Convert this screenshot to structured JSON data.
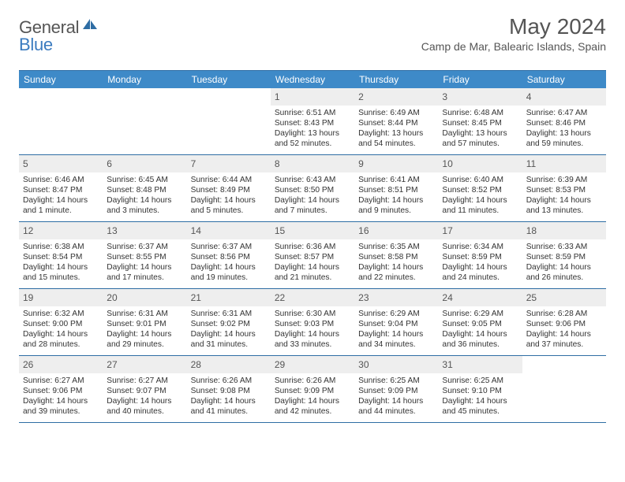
{
  "brand": {
    "part1": "General",
    "part2": "Blue"
  },
  "title": "May 2024",
  "location": "Camp de Mar, Balearic Islands, Spain",
  "colors": {
    "header_bg": "#3e8ac8",
    "rule": "#2e6da4",
    "daynum_bg": "#eeeeee",
    "text_muted": "#555555",
    "text_body": "#333333",
    "brand_blue": "#3b7bbf"
  },
  "day_headers": [
    "Sunday",
    "Monday",
    "Tuesday",
    "Wednesday",
    "Thursday",
    "Friday",
    "Saturday"
  ],
  "weeks": [
    [
      null,
      null,
      null,
      {
        "n": "1",
        "sunrise": "6:51 AM",
        "sunset": "8:43 PM",
        "daylight": "13 hours and 52 minutes."
      },
      {
        "n": "2",
        "sunrise": "6:49 AM",
        "sunset": "8:44 PM",
        "daylight": "13 hours and 54 minutes."
      },
      {
        "n": "3",
        "sunrise": "6:48 AM",
        "sunset": "8:45 PM",
        "daylight": "13 hours and 57 minutes."
      },
      {
        "n": "4",
        "sunrise": "6:47 AM",
        "sunset": "8:46 PM",
        "daylight": "13 hours and 59 minutes."
      }
    ],
    [
      {
        "n": "5",
        "sunrise": "6:46 AM",
        "sunset": "8:47 PM",
        "daylight": "14 hours and 1 minute."
      },
      {
        "n": "6",
        "sunrise": "6:45 AM",
        "sunset": "8:48 PM",
        "daylight": "14 hours and 3 minutes."
      },
      {
        "n": "7",
        "sunrise": "6:44 AM",
        "sunset": "8:49 PM",
        "daylight": "14 hours and 5 minutes."
      },
      {
        "n": "8",
        "sunrise": "6:43 AM",
        "sunset": "8:50 PM",
        "daylight": "14 hours and 7 minutes."
      },
      {
        "n": "9",
        "sunrise": "6:41 AM",
        "sunset": "8:51 PM",
        "daylight": "14 hours and 9 minutes."
      },
      {
        "n": "10",
        "sunrise": "6:40 AM",
        "sunset": "8:52 PM",
        "daylight": "14 hours and 11 minutes."
      },
      {
        "n": "11",
        "sunrise": "6:39 AM",
        "sunset": "8:53 PM",
        "daylight": "14 hours and 13 minutes."
      }
    ],
    [
      {
        "n": "12",
        "sunrise": "6:38 AM",
        "sunset": "8:54 PM",
        "daylight": "14 hours and 15 minutes."
      },
      {
        "n": "13",
        "sunrise": "6:37 AM",
        "sunset": "8:55 PM",
        "daylight": "14 hours and 17 minutes."
      },
      {
        "n": "14",
        "sunrise": "6:37 AM",
        "sunset": "8:56 PM",
        "daylight": "14 hours and 19 minutes."
      },
      {
        "n": "15",
        "sunrise": "6:36 AM",
        "sunset": "8:57 PM",
        "daylight": "14 hours and 21 minutes."
      },
      {
        "n": "16",
        "sunrise": "6:35 AM",
        "sunset": "8:58 PM",
        "daylight": "14 hours and 22 minutes."
      },
      {
        "n": "17",
        "sunrise": "6:34 AM",
        "sunset": "8:59 PM",
        "daylight": "14 hours and 24 minutes."
      },
      {
        "n": "18",
        "sunrise": "6:33 AM",
        "sunset": "8:59 PM",
        "daylight": "14 hours and 26 minutes."
      }
    ],
    [
      {
        "n": "19",
        "sunrise": "6:32 AM",
        "sunset": "9:00 PM",
        "daylight": "14 hours and 28 minutes."
      },
      {
        "n": "20",
        "sunrise": "6:31 AM",
        "sunset": "9:01 PM",
        "daylight": "14 hours and 29 minutes."
      },
      {
        "n": "21",
        "sunrise": "6:31 AM",
        "sunset": "9:02 PM",
        "daylight": "14 hours and 31 minutes."
      },
      {
        "n": "22",
        "sunrise": "6:30 AM",
        "sunset": "9:03 PM",
        "daylight": "14 hours and 33 minutes."
      },
      {
        "n": "23",
        "sunrise": "6:29 AM",
        "sunset": "9:04 PM",
        "daylight": "14 hours and 34 minutes."
      },
      {
        "n": "24",
        "sunrise": "6:29 AM",
        "sunset": "9:05 PM",
        "daylight": "14 hours and 36 minutes."
      },
      {
        "n": "25",
        "sunrise": "6:28 AM",
        "sunset": "9:06 PM",
        "daylight": "14 hours and 37 minutes."
      }
    ],
    [
      {
        "n": "26",
        "sunrise": "6:27 AM",
        "sunset": "9:06 PM",
        "daylight": "14 hours and 39 minutes."
      },
      {
        "n": "27",
        "sunrise": "6:27 AM",
        "sunset": "9:07 PM",
        "daylight": "14 hours and 40 minutes."
      },
      {
        "n": "28",
        "sunrise": "6:26 AM",
        "sunset": "9:08 PM",
        "daylight": "14 hours and 41 minutes."
      },
      {
        "n": "29",
        "sunrise": "6:26 AM",
        "sunset": "9:09 PM",
        "daylight": "14 hours and 42 minutes."
      },
      {
        "n": "30",
        "sunrise": "6:25 AM",
        "sunset": "9:09 PM",
        "daylight": "14 hours and 44 minutes."
      },
      {
        "n": "31",
        "sunrise": "6:25 AM",
        "sunset": "9:10 PM",
        "daylight": "14 hours and 45 minutes."
      },
      null
    ]
  ],
  "labels": {
    "sunrise": "Sunrise:",
    "sunset": "Sunset:",
    "daylight": "Daylight:"
  }
}
